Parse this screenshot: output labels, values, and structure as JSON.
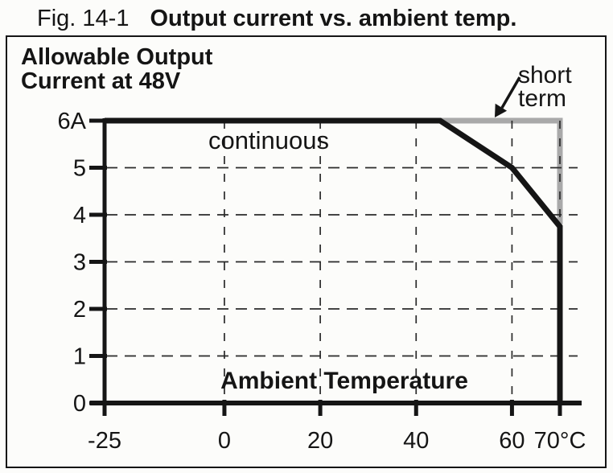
{
  "title": {
    "prefix": "Fig. 14-1",
    "main": "Output current vs. ambient temp."
  },
  "colors": {
    "ink": "#151515",
    "short_term_gray": "#a9a9a9"
  },
  "chart_data": {
    "type": "line",
    "title": "Output current vs. ambient temp.",
    "y_label": "Allowable Output Current at 48V",
    "y_label_lines": [
      "Allowable Output",
      "Current at 48V"
    ],
    "x_label": "Ambient Temperature",
    "x_unit": "°C",
    "y_unit": "A",
    "xlim": [
      -25,
      70
    ],
    "ylim": [
      0,
      6
    ],
    "x_ticks": [
      -25,
      0,
      20,
      40,
      60,
      70
    ],
    "x_tick_labels": [
      "-25",
      "0",
      "20",
      "40",
      "60",
      "70°C"
    ],
    "y_ticks": [
      0,
      1,
      2,
      3,
      4,
      5,
      6
    ],
    "y_tick_labels": [
      "0",
      "1",
      "2",
      "3",
      "4",
      "5",
      "6A"
    ],
    "x_gridlines": [
      0,
      20,
      40,
      60,
      70
    ],
    "y_gridlines": [
      1,
      2,
      3,
      4,
      5
    ],
    "grid_style": "dashed",
    "legend_position": "inline-annotations",
    "series": [
      {
        "name": "continuous",
        "color": "#151515",
        "points": [
          [
            -25,
            6
          ],
          [
            45,
            6
          ],
          [
            60,
            5
          ],
          [
            70,
            3.75
          ],
          [
            70,
            0
          ]
        ]
      },
      {
        "name": "short term",
        "color": "#a9a9a9",
        "points": [
          [
            44,
            6
          ],
          [
            70,
            6
          ],
          [
            70,
            3.8
          ]
        ]
      }
    ],
    "annotations": {
      "continuous": "continuous",
      "short_term_line1": "short",
      "short_term_line2": "term"
    }
  }
}
